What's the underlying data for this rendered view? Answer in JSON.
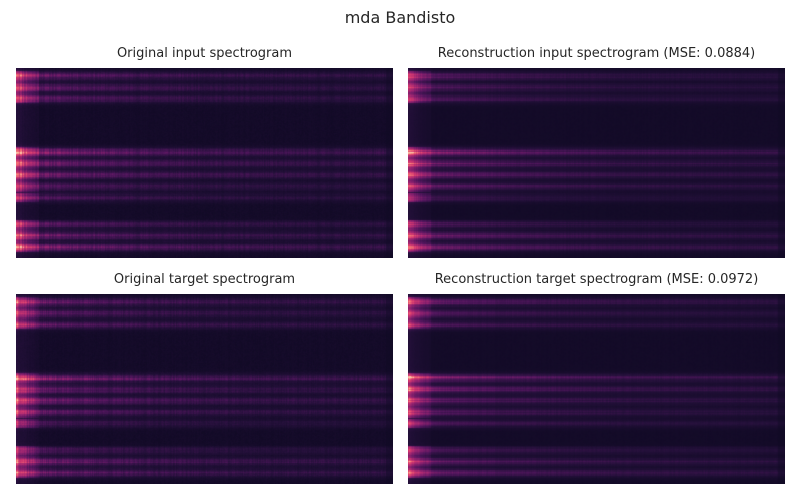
{
  "figure": {
    "title": "mda Bandisto"
  },
  "chart_data": [
    {
      "type": "heatmap",
      "title": "Original input spectrogram",
      "colormap": "magma-like",
      "grid": false
    },
    {
      "type": "heatmap",
      "title": "Reconstruction input spectrogram (MSE: 0.0884)",
      "colormap": "magma-like",
      "grid": false
    },
    {
      "type": "heatmap",
      "title": "Original target spectrogram",
      "colormap": "magma-like",
      "grid": false
    },
    {
      "type": "heatmap",
      "title": "Reconstruction target spectrogram (MSE: 0.0972)",
      "colormap": "magma-like",
      "grid": false
    }
  ]
}
